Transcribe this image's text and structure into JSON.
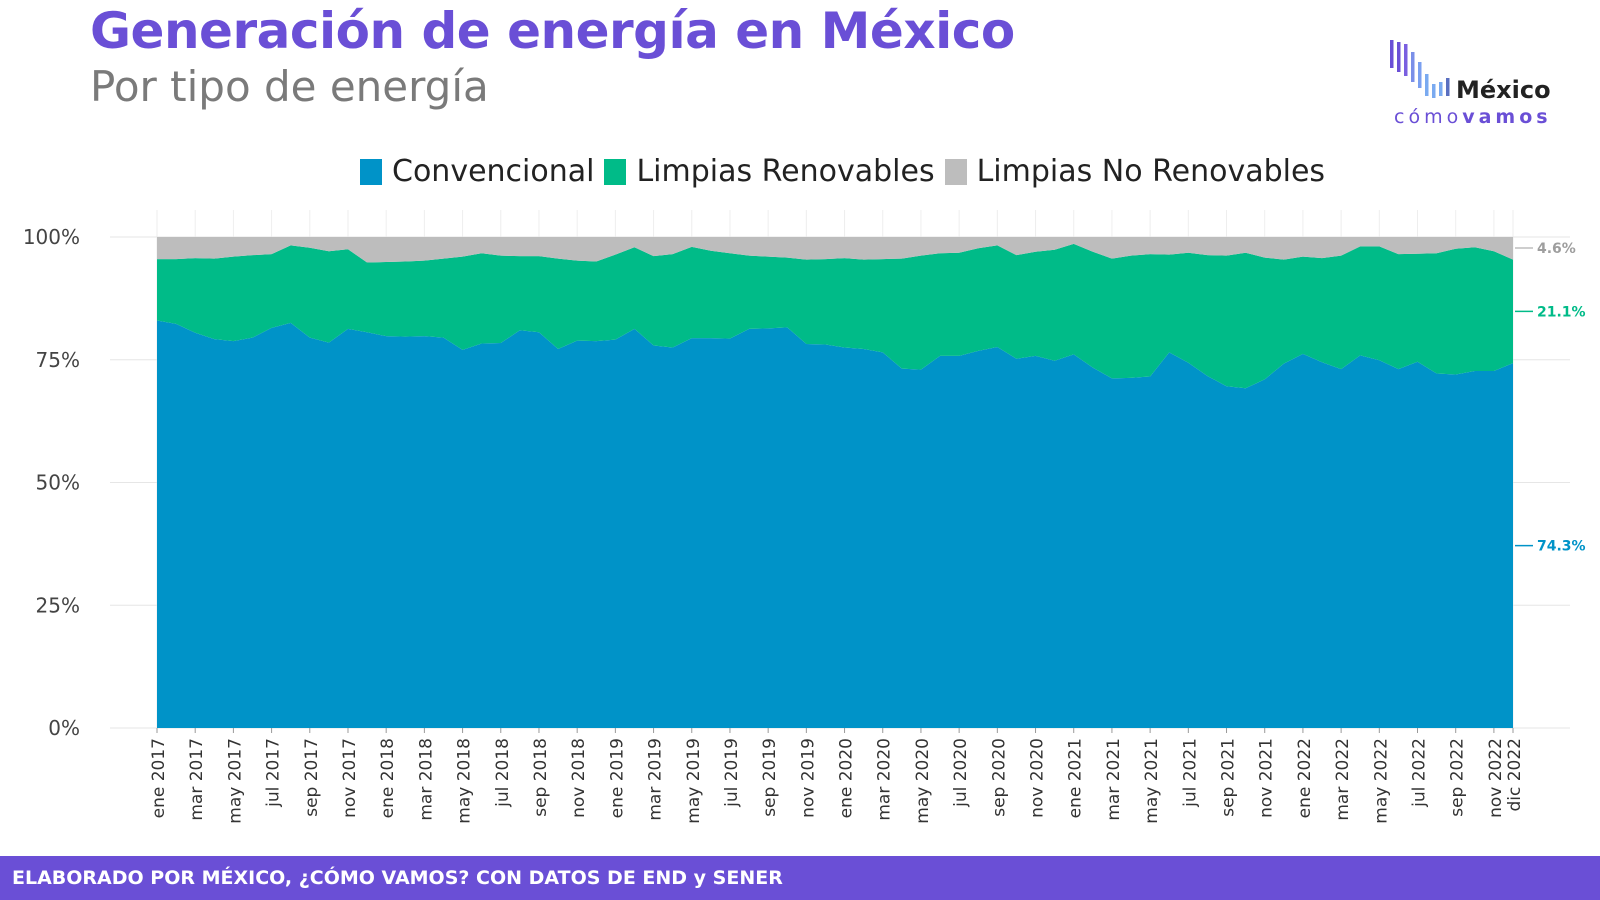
{
  "header": {
    "title": "Generación de energía en México",
    "subtitle": "Por tipo de energía"
  },
  "logo": {
    "word": "México",
    "sub_light": "cómo",
    "sub_bold": "vamos"
  },
  "footer": {
    "text": "ELABORADO POR MÉXICO, ¿CÓMO VAMOS? CON DATOS DE END y SENER"
  },
  "colors": {
    "convencional": "#0093c8",
    "renovables": "#00bb88",
    "no_renovables": "#bdbdbd",
    "brand": "#6a4fd6"
  },
  "chart_data": {
    "type": "area",
    "stacked": true,
    "y_tick_labels": [
      "0%",
      "25%",
      "50%",
      "75%",
      "100%"
    ],
    "ylim": [
      0,
      100
    ],
    "legend_position": "top",
    "x_tick_labels": [
      "ene 2017",
      "mar 2017",
      "may 2017",
      "jul 2017",
      "sep 2017",
      "nov 2017",
      "ene 2018",
      "mar 2018",
      "may 2018",
      "jul 2018",
      "sep 2018",
      "nov 2018",
      "ene 2019",
      "mar 2019",
      "may 2019",
      "jul 2019",
      "sep 2019",
      "nov 2019",
      "ene 2020",
      "mar 2020",
      "may 2020",
      "jul 2020",
      "sep 2020",
      "nov 2020",
      "ene 2021",
      "mar 2021",
      "may 2021",
      "jul 2021",
      "sep 2021",
      "nov 2021",
      "ene 2022",
      "mar 2022",
      "may 2022",
      "jul 2022",
      "sep 2022",
      "nov 2022",
      "dic 2022"
    ],
    "x": [
      "2017-01",
      "2017-02",
      "2017-03",
      "2017-04",
      "2017-05",
      "2017-06",
      "2017-07",
      "2017-08",
      "2017-09",
      "2017-10",
      "2017-11",
      "2017-12",
      "2018-01",
      "2018-02",
      "2018-03",
      "2018-04",
      "2018-05",
      "2018-06",
      "2018-07",
      "2018-08",
      "2018-09",
      "2018-10",
      "2018-11",
      "2018-12",
      "2019-01",
      "2019-02",
      "2019-03",
      "2019-04",
      "2019-05",
      "2019-06",
      "2019-07",
      "2019-08",
      "2019-09",
      "2019-10",
      "2019-11",
      "2019-12",
      "2020-01",
      "2020-02",
      "2020-03",
      "2020-04",
      "2020-05",
      "2020-06",
      "2020-07",
      "2020-08",
      "2020-09",
      "2020-10",
      "2020-11",
      "2020-12",
      "2021-01",
      "2021-02",
      "2021-03",
      "2021-04",
      "2021-05",
      "2021-06",
      "2021-07",
      "2021-08",
      "2021-09",
      "2021-10",
      "2021-11",
      "2021-12",
      "2022-01",
      "2022-02",
      "2022-03",
      "2022-04",
      "2022-05",
      "2022-06",
      "2022-07",
      "2022-08",
      "2022-09",
      "2022-10",
      "2022-11",
      "2022-12"
    ],
    "series": [
      {
        "name": "Convencional",
        "color_key": "convencional",
        "end_label": "74.3%",
        "values": [
          83.0,
          82.3,
          80.5,
          79.2,
          78.8,
          79.5,
          81.5,
          82.5,
          79.5,
          78.5,
          81.3,
          80.6,
          79.8,
          79.7,
          79.8,
          79.5,
          77.0,
          78.3,
          78.4,
          81.0,
          80.6,
          77.2,
          78.9,
          78.8,
          79.1,
          81.3,
          77.9,
          77.5,
          79.4,
          79.4,
          79.3,
          81.3,
          81.4,
          81.6,
          78.2,
          78.1,
          77.5,
          77.2,
          76.5,
          73.2,
          73.0,
          75.8,
          75.8,
          76.8,
          77.6,
          75.2,
          75.8,
          74.8,
          76.1,
          73.4,
          71.2,
          71.3,
          71.6,
          76.5,
          74.4,
          71.7,
          69.6,
          69.2,
          71.0,
          74.2,
          76.2,
          74.5,
          73.1,
          75.9,
          74.9,
          73.1,
          74.6,
          72.2,
          72.0,
          72.7,
          72.7,
          74.3
        ]
      },
      {
        "name": "Limpias Renovables",
        "color_key": "renovables",
        "end_label": "21.1%",
        "values": [
          12.5,
          13.2,
          15.2,
          16.4,
          17.2,
          16.8,
          15.0,
          15.8,
          18.3,
          18.6,
          16.2,
          14.2,
          15.1,
          15.3,
          15.4,
          16.1,
          19.0,
          18.4,
          17.8,
          15.1,
          15.5,
          18.4,
          16.3,
          16.2,
          17.3,
          16.6,
          18.2,
          19.0,
          18.6,
          17.8,
          17.4,
          14.9,
          14.6,
          14.2,
          17.2,
          17.4,
          18.2,
          18.2,
          19.0,
          22.4,
          23.2,
          20.9,
          21.0,
          20.9,
          20.7,
          21.1,
          21.2,
          22.6,
          22.5,
          23.6,
          24.4,
          24.9,
          24.9,
          19.9,
          22.4,
          24.6,
          26.6,
          27.6,
          24.8,
          21.2,
          19.8,
          21.2,
          23.1,
          22.2,
          23.2,
          23.4,
          22.0,
          24.5,
          25.6,
          25.2,
          24.4,
          21.1
        ]
      },
      {
        "name": "Limpias No Renovables",
        "color_key": "no_renovables",
        "end_label": "4.6%",
        "values": [
          4.5,
          4.5,
          4.3,
          4.4,
          4.0,
          3.7,
          3.5,
          1.7,
          2.2,
          2.9,
          2.5,
          5.2,
          5.1,
          5.0,
          4.8,
          4.4,
          4.0,
          3.3,
          3.8,
          3.9,
          3.9,
          4.4,
          4.8,
          5.0,
          3.6,
          2.1,
          3.9,
          3.5,
          2.0,
          2.8,
          3.3,
          3.8,
          4.0,
          4.2,
          4.6,
          4.5,
          4.3,
          4.6,
          4.5,
          4.4,
          3.8,
          3.3,
          3.2,
          2.3,
          1.7,
          3.7,
          3.0,
          2.6,
          1.4,
          3.0,
          4.4,
          3.8,
          3.5,
          3.6,
          3.2,
          3.7,
          3.8,
          3.2,
          4.2,
          4.6,
          4.0,
          4.3,
          3.8,
          1.9,
          1.9,
          3.5,
          3.4,
          3.3,
          2.4,
          2.1,
          2.9,
          4.6
        ]
      }
    ]
  }
}
